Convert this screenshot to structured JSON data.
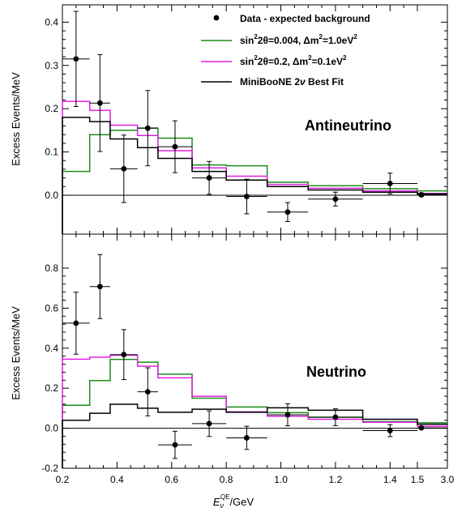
{
  "chart_data": [
    {
      "type": "line",
      "panel_label": "Antineutrino",
      "ylabel": "Excess Events/MeV",
      "ylim": [
        -0.09,
        0.44
      ],
      "yticks": [
        0.0,
        0.1,
        0.2,
        0.3,
        0.4
      ],
      "ytick_labels": [
        "0.0",
        "0.1",
        "0.2",
        "0.3",
        "0.4"
      ],
      "bin_edges": [
        0.2,
        0.3,
        0.375,
        0.475,
        0.55,
        0.675,
        0.8,
        0.95,
        1.1,
        1.3,
        1.5,
        3.0
      ],
      "data": {
        "name": "Data - expected background",
        "x": [
          0.25,
          0.3375,
          0.425,
          0.5125,
          0.6125,
          0.7375,
          0.875,
          1.025,
          1.2,
          1.4,
          1.7
        ],
        "y": [
          0.315,
          0.213,
          0.061,
          0.155,
          0.112,
          0.04,
          -0.003,
          -0.039,
          -0.009,
          0.027,
          0.001
        ],
        "yerr": [
          0.11,
          0.112,
          0.078,
          0.087,
          0.06,
          0.038,
          0.04,
          0.022,
          0.016,
          0.024,
          0.004
        ]
      },
      "series": [
        {
          "name": "sin²2θ=0.004, Δm²=1.0eV²",
          "color": "#1a8c1a",
          "values": [
            0.055,
            0.14,
            0.15,
            0.155,
            0.132,
            0.07,
            0.068,
            0.03,
            0.022,
            0.015,
            0.01
          ]
        },
        {
          "name": "sin²2θ=0.2, Δm²=0.1eV²",
          "color": "#e020e0",
          "values": [
            0.217,
            0.196,
            0.162,
            0.138,
            0.103,
            0.063,
            0.044,
            0.025,
            0.016,
            0.01,
            0.004
          ]
        },
        {
          "name": "MiniBooNE 2ν Best Fit",
          "color": "#000000",
          "values": [
            0.18,
            0.17,
            0.13,
            0.11,
            0.085,
            0.055,
            0.035,
            0.02,
            0.012,
            0.007,
            0.003
          ]
        }
      ]
    },
    {
      "type": "line",
      "panel_label": "Neutrino",
      "ylabel": "Excess Events/MeV",
      "ylim": [
        -0.2,
        0.97
      ],
      "yticks": [
        -0.2,
        0.0,
        0.2,
        0.4,
        0.6,
        0.8
      ],
      "ytick_labels": [
        "-0.2",
        "0.0",
        "0.2",
        "0.4",
        "0.6",
        "0.8"
      ],
      "bin_edges": [
        0.2,
        0.3,
        0.375,
        0.475,
        0.55,
        0.675,
        0.8,
        0.95,
        1.1,
        1.3,
        1.5,
        3.0
      ],
      "data": {
        "name": "Data - expected background",
        "x": [
          0.25,
          0.3375,
          0.425,
          0.5125,
          0.6125,
          0.7375,
          0.875,
          1.025,
          1.2,
          1.4,
          1.7
        ],
        "y": [
          0.525,
          0.708,
          0.368,
          0.182,
          -0.083,
          0.023,
          -0.048,
          0.067,
          0.055,
          -0.012,
          0.002
        ],
        "yerr": [
          0.155,
          0.16,
          0.125,
          0.12,
          0.068,
          0.064,
          0.058,
          0.055,
          0.042,
          0.03,
          0.006
        ]
      },
      "series": [
        {
          "name": "sin²2θ=0.004, Δm²=1.0eV²",
          "color": "#1a8c1a",
          "values": [
            0.115,
            0.238,
            0.344,
            0.33,
            0.27,
            0.15,
            0.106,
            0.078,
            0.055,
            0.033,
            0.027
          ]
        },
        {
          "name": "sin²2θ=0.2, Δm²=0.1eV²",
          "color": "#e020e0",
          "values": [
            0.345,
            0.355,
            0.365,
            0.31,
            0.252,
            0.16,
            0.082,
            0.06,
            0.045,
            0.03,
            0.01
          ]
        },
        {
          "name": "MiniBooNE 2ν Best Fit",
          "color": "#000000",
          "values": [
            0.04,
            0.075,
            0.12,
            0.1,
            0.08,
            0.095,
            0.08,
            0.102,
            0.09,
            0.045,
            0.02
          ]
        }
      ]
    }
  ],
  "shared": {
    "xaxis_main": "E",
    "xaxis_sup": "QE",
    "xaxis_sub": "ν",
    "xaxis_unit": "/GeV",
    "xticks": [
      0.2,
      0.4,
      0.6,
      0.8,
      1.0,
      1.2,
      1.4,
      1.5,
      3.0
    ],
    "xtick_labels": [
      "0.2",
      "0.4",
      "0.6",
      "0.8",
      "1.0",
      "1.2",
      "1.4",
      "1.5",
      "3.0"
    ],
    "legend": {
      "data": "Data - expected background",
      "s1a": "sin",
      "s1b": "2",
      "s1c": "2θ=0.004, Δm",
      "s1d": "2",
      "s1e": "=1.0eV",
      "s1f": "2",
      "s2a": "sin",
      "s2b": "2",
      "s2c": "2θ=0.2, Δm",
      "s2d": "2",
      "s2e": "=0.1eV",
      "s2f": "2",
      "s3a": "MiniBooNE 2",
      "s3b": "ν",
      "s3c": " Best Fit"
    }
  }
}
